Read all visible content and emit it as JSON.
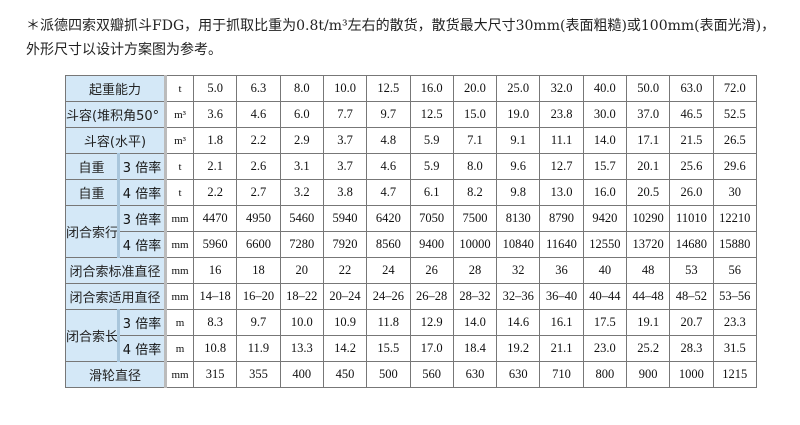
{
  "note": "＊派德四索双瓣抓斗FDG，用于抓取比重为0.8t/m³左右的散货，散货最大尺寸30mm(表面粗糙)或100mm(表面光滑)，外形尺寸以设计方案图为参考。",
  "rows": [
    {
      "label": "起重能力",
      "unit": "t",
      "values": [
        "5.0",
        "6.3",
        "8.0",
        "10.0",
        "12.5",
        "16.0",
        "20.0",
        "25.0",
        "32.0",
        "40.0",
        "50.0",
        "63.0",
        "72.0"
      ]
    },
    {
      "label": "斗容(堆积角50°  )",
      "unit": "m³",
      "values": [
        "3.6",
        "4.6",
        "6.0",
        "7.7",
        "9.7",
        "12.5",
        "15.0",
        "19.0",
        "23.8",
        "30.0",
        "37.0",
        "46.5",
        "52.5"
      ]
    },
    {
      "label": "斗容(水平)",
      "unit": "m³",
      "values": [
        "1.8",
        "2.2",
        "2.9",
        "3.7",
        "4.8",
        "5.9",
        "7.1",
        "9.1",
        "11.1",
        "14.0",
        "17.1",
        "21.5",
        "26.5"
      ]
    },
    {
      "label": "自重",
      "sub": "3 倍率",
      "unit": "t",
      "values": [
        "2.1",
        "2.6",
        "3.1",
        "3.7",
        "4.6",
        "5.9",
        "8.0",
        "9.6",
        "12.7",
        "15.7",
        "20.1",
        "25.6",
        "29.6"
      ]
    },
    {
      "label": "自重",
      "sub": "4 倍率",
      "unit": "t",
      "values": [
        "2.2",
        "2.7",
        "3.2",
        "3.8",
        "4.7",
        "6.1",
        "8.2",
        "9.8",
        "13.0",
        "16.0",
        "20.5",
        "26.0",
        "30"
      ]
    },
    {
      "label": "闭合索行程",
      "sub": "3 倍率",
      "unit": "mm",
      "values": [
        "4470",
        "4950",
        "5460",
        "5940",
        "6420",
        "7050",
        "7500",
        "8130",
        "8790",
        "9420",
        "10290",
        "11010",
        "12210"
      ]
    },
    {
      "sub": "4 倍率",
      "unit": "mm",
      "values": [
        "5960",
        "6600",
        "7280",
        "7920",
        "8560",
        "9400",
        "10000",
        "10840",
        "11640",
        "12550",
        "13720",
        "14680",
        "15880"
      ]
    },
    {
      "label": "闭合索标准直径",
      "unit": "mm",
      "values": [
        "16",
        "18",
        "20",
        "22",
        "24",
        "26",
        "28",
        "32",
        "36",
        "40",
        "48",
        "53",
        "56"
      ]
    },
    {
      "label": "闭合索适用直径",
      "unit": "mm",
      "values": [
        "14–18",
        "16–20",
        "18–22",
        "20–24",
        "24–26",
        "26–28",
        "28–32",
        "32–36",
        "36–40",
        "40–44",
        "44–48",
        "48–52",
        "53–56"
      ]
    },
    {
      "label": "闭合索长度",
      "sub": "3 倍率",
      "unit": "m",
      "values": [
        "8.3",
        "9.7",
        "10.0",
        "10.9",
        "11.8",
        "12.9",
        "14.0",
        "14.6",
        "16.1",
        "17.5",
        "19.1",
        "20.7",
        "23.3"
      ]
    },
    {
      "sub": "4 倍率",
      "unit": "m",
      "values": [
        "10.8",
        "11.9",
        "13.3",
        "14.2",
        "15.5",
        "17.0",
        "18.4",
        "19.2",
        "21.1",
        "23.0",
        "25.2",
        "28.3",
        "31.5"
      ]
    },
    {
      "label": "滑轮直径",
      "unit": "mm",
      "values": [
        "315",
        "355",
        "400",
        "450",
        "500",
        "560",
        "630",
        "630",
        "710",
        "800",
        "900",
        "1000",
        "1215"
      ]
    }
  ]
}
